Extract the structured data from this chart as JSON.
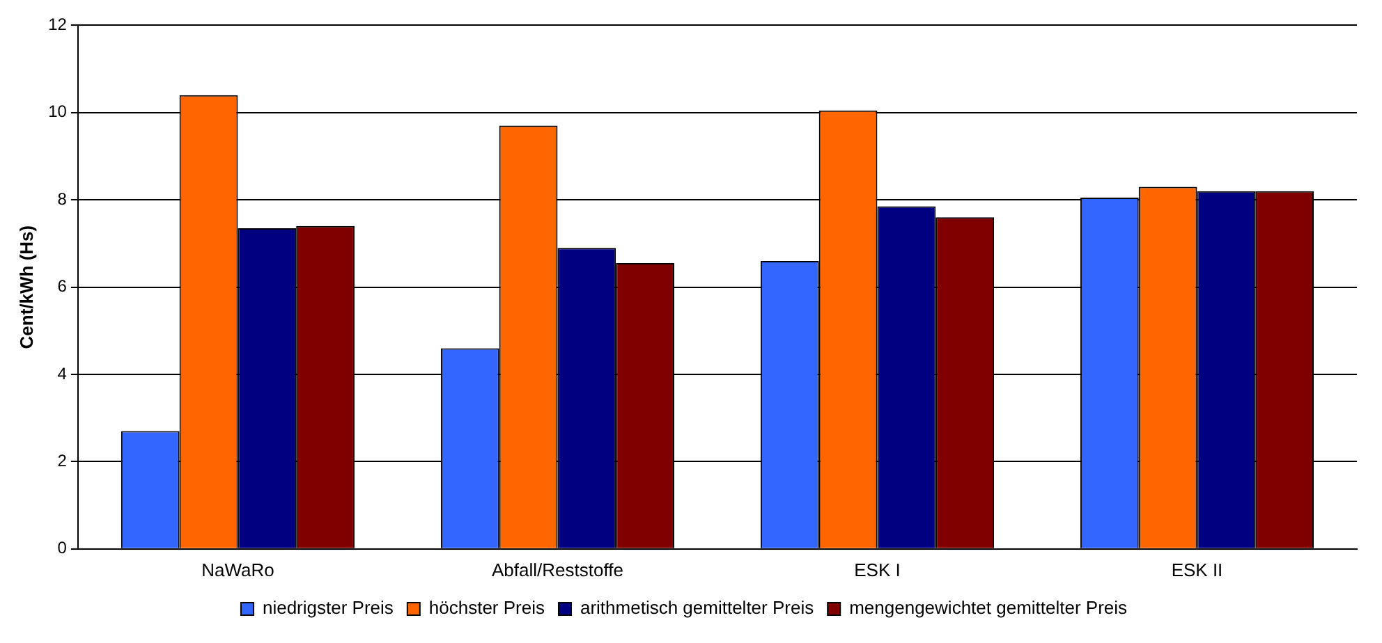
{
  "chart_data": {
    "type": "bar",
    "ylabel": "Cent/kWh (Hs)",
    "categories": [
      "NaWaRo",
      "Abfall/Reststoffe",
      "ESK I",
      "ESK II"
    ],
    "series": [
      {
        "name": "niedrigster Preis",
        "color": "#3366ff",
        "values": [
          2.7,
          4.6,
          6.6,
          8.05
        ]
      },
      {
        "name": "höchster Preis",
        "color": "#ff6600",
        "values": [
          10.4,
          9.7,
          10.05,
          8.3
        ]
      },
      {
        "name": "arithmetisch gemittelter Preis",
        "color": "#000080",
        "values": [
          7.35,
          6.9,
          7.85,
          8.2
        ]
      },
      {
        "name": "mengengewichtet gemittelter Preis",
        "color": "#800000",
        "values": [
          7.4,
          6.55,
          7.6,
          8.2
        ]
      }
    ],
    "ylim": [
      0,
      12
    ],
    "yticks": [
      0,
      2,
      4,
      6,
      8,
      10,
      12
    ],
    "grid": "y",
    "legend": "bottom"
  }
}
